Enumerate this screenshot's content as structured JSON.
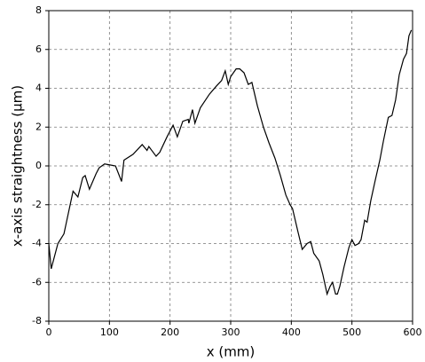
{
  "chart_data": {
    "type": "line",
    "xlabel": "x (mm)",
    "ylabel": "x-axis straightness (μm)",
    "xlim": [
      0,
      600
    ],
    "ylim": [
      -8,
      8
    ],
    "xticks": [
      0,
      100,
      200,
      300,
      400,
      500,
      600
    ],
    "yticks": [
      -8,
      -6,
      -4,
      -2,
      0,
      2,
      4,
      6,
      8
    ],
    "grid": true,
    "series": [
      {
        "color": "#000000",
        "x": [
          0,
          4,
          15,
          25,
          40,
          48,
          56,
          60,
          67,
          78,
          83,
          92,
          110,
          120,
          124,
          139,
          154,
          162,
          165,
          177,
          183,
          195,
          205,
          212,
          221,
          230,
          231,
          237,
          241,
          250,
          265,
          276,
          285,
          291,
          296,
          300,
          309,
          315,
          322,
          329,
          335,
          344,
          354,
          363,
          373,
          382,
          391,
          398,
          402,
          411,
          418,
          426,
          432,
          437,
          446,
          452,
          459,
          464,
          468,
          473,
          476,
          480,
          487,
          495,
          500,
          505,
          511,
          515,
          521,
          525,
          531,
          538,
          546,
          552,
          560,
          566,
          572,
          578,
          585,
          590,
          594,
          598
        ],
        "values": [
          -4,
          -5.3,
          -4,
          -3.5,
          -1.3,
          -1.6,
          -0.6,
          -0.5,
          -1.2,
          -0.4,
          -0.1,
          0.1,
          0,
          -0.8,
          0.3,
          0.6,
          1.1,
          0.8,
          1.0,
          0.5,
          0.7,
          1.5,
          2.1,
          1.5,
          2.3,
          2.4,
          2.2,
          2.9,
          2.2,
          3.0,
          3.7,
          4.1,
          4.4,
          4.9,
          4.2,
          4.6,
          5.0,
          5.0,
          4.8,
          4.2,
          4.3,
          3.1,
          2.0,
          1.2,
          0.4,
          -0.5,
          -1.5,
          -2.0,
          -2.2,
          -3.4,
          -4.3,
          -4.0,
          -3.9,
          -4.5,
          -4.9,
          -5.6,
          -6.6,
          -6.2,
          -6.0,
          -6.6,
          -6.6,
          -6.2,
          -5.2,
          -4.2,
          -3.8,
          -4.1,
          -4.0,
          -3.8,
          -2.8,
          -2.9,
          -1.8,
          -0.8,
          0.3,
          1.3,
          2.5,
          2.6,
          3.4,
          4.7,
          5.5,
          5.8,
          6.7,
          7.0
        ]
      }
    ]
  }
}
